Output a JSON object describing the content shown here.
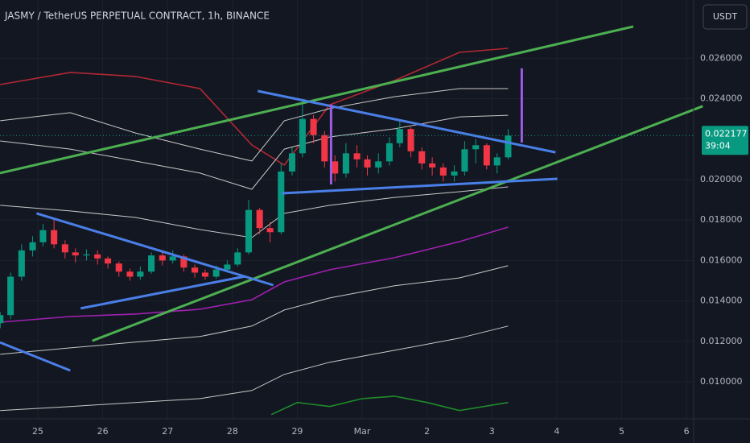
{
  "chart_data": {
    "type": "candlestick",
    "title": "JASMY / TetherUS PERPETUAL CONTRACT, 1h, BINANCE",
    "currency_button": "USDT",
    "last_price": 0.022177,
    "timer": "39:04",
    "up_color": "#089981",
    "down_color": "#f23645",
    "grid": true,
    "xlim": [
      -0.583,
      10.11
    ],
    "ylim": [
      0.00817,
      0.02888
    ],
    "xticks": [
      {
        "value": 0,
        "label": "25"
      },
      {
        "value": 1,
        "label": "26"
      },
      {
        "value": 2,
        "label": "27"
      },
      {
        "value": 3,
        "label": "28"
      },
      {
        "value": 4,
        "label": "29"
      },
      {
        "value": 5,
        "label": "Mar"
      },
      {
        "value": 6,
        "label": "2"
      },
      {
        "value": 7,
        "label": "3"
      },
      {
        "value": 8,
        "label": "4"
      },
      {
        "value": 9,
        "label": "5"
      },
      {
        "value": 10,
        "label": "6"
      }
    ],
    "yticks": [
      {
        "value": 0.01,
        "label": "0.010000"
      },
      {
        "value": 0.012,
        "label": "0.012000"
      },
      {
        "value": 0.014,
        "label": "0.014000"
      },
      {
        "value": 0.016,
        "label": "0.016000"
      },
      {
        "value": 0.018,
        "label": "0.018000"
      },
      {
        "value": 0.02,
        "label": "0.020000"
      },
      {
        "value": 0.024,
        "label": "0.024000"
      },
      {
        "value": 0.026,
        "label": "0.026000"
      }
    ],
    "x": [
      -0.58,
      -0.42,
      -0.25,
      -0.08,
      0.08,
      0.25,
      0.42,
      0.58,
      0.75,
      0.92,
      1.08,
      1.25,
      1.42,
      1.58,
      1.75,
      1.92,
      2.08,
      2.25,
      2.42,
      2.58,
      2.75,
      2.92,
      3.08,
      3.25,
      3.42,
      3.58,
      3.75,
      3.92,
      4.08,
      4.25,
      4.42,
      4.58,
      4.75,
      4.92,
      5.08,
      5.25,
      5.42,
      5.58,
      5.75,
      5.92,
      6.08,
      6.25,
      6.42,
      6.58,
      6.75,
      6.92,
      7.08,
      7.25
    ],
    "open": [
      0.0129,
      0.0133,
      0.0152,
      0.0165,
      0.0169,
      0.0175,
      0.0168,
      0.0164,
      0.01625,
      0.0163,
      0.0161,
      0.01585,
      0.01545,
      0.0152,
      0.01545,
      0.01625,
      0.016,
      0.0162,
      0.01565,
      0.0154,
      0.0152,
      0.01555,
      0.0158,
      0.0164,
      0.0185,
      0.0176,
      0.0174,
      0.0204,
      0.0213,
      0.023,
      0.0222,
      0.0209,
      0.0203,
      0.0213,
      0.021,
      0.0206,
      0.0209,
      0.0218,
      0.0225,
      0.0214,
      0.0208,
      0.0206,
      0.0202,
      0.0204,
      0.0215,
      0.0217,
      0.0207,
      0.0211
    ],
    "high": [
      0.01345,
      0.0154,
      0.0168,
      0.0172,
      0.0178,
      0.01805,
      0.017,
      0.0166,
      0.01655,
      0.0165,
      0.0162,
      0.01595,
      0.0156,
      0.0157,
      0.0164,
      0.0164,
      0.0165,
      0.0163,
      0.0158,
      0.01555,
      0.01575,
      0.016,
      0.0166,
      0.019,
      0.0186,
      0.0179,
      0.0208,
      0.0216,
      0.0239,
      0.0232,
      0.0224,
      0.0212,
      0.0218,
      0.0217,
      0.0212,
      0.0213,
      0.0221,
      0.0229,
      0.0226,
      0.0216,
      0.0211,
      0.0208,
      0.0207,
      0.0219,
      0.022,
      0.0218,
      0.0213,
      0.0225
    ],
    "low": [
      0.01265,
      0.0131,
      0.015,
      0.0162,
      0.0167,
      0.0166,
      0.0161,
      0.0159,
      0.016,
      0.0158,
      0.0156,
      0.0152,
      0.015,
      0.01505,
      0.01535,
      0.01575,
      0.01585,
      0.01545,
      0.01515,
      0.01505,
      0.0151,
      0.0154,
      0.0157,
      0.0163,
      0.0173,
      0.0169,
      0.0173,
      0.0202,
      0.0211,
      0.0218,
      0.0206,
      0.0199,
      0.0201,
      0.0206,
      0.0202,
      0.0203,
      0.0207,
      0.0216,
      0.0211,
      0.0205,
      0.0202,
      0.0199,
      0.0199,
      0.0202,
      0.0208,
      0.0205,
      0.0203,
      0.021
    ],
    "close": [
      0.0133,
      0.0152,
      0.0165,
      0.0169,
      0.0175,
      0.0168,
      0.0164,
      0.01625,
      0.0163,
      0.0161,
      0.01585,
      0.01545,
      0.0152,
      0.01545,
      0.01625,
      0.016,
      0.0162,
      0.01565,
      0.0154,
      0.0152,
      0.01555,
      0.0158,
      0.0164,
      0.0185,
      0.0176,
      0.0174,
      0.0204,
      0.0213,
      0.023,
      0.0222,
      0.0209,
      0.0203,
      0.0213,
      0.021,
      0.0206,
      0.0209,
      0.0218,
      0.0225,
      0.0214,
      0.0208,
      0.0206,
      0.0202,
      0.0204,
      0.0215,
      0.0217,
      0.0207,
      0.0211,
      0.022177
    ],
    "bands_x": [
      -0.58,
      0.5,
      1.5,
      2.5,
      3.3,
      3.8,
      4.5,
      5.5,
      6.5,
      7.25
    ],
    "bands": [
      {
        "color": "#b22833",
        "values": [
          0.0247,
          0.0253,
          0.0251,
          0.0245,
          0.02171,
          0.02072,
          0.0237,
          0.0249,
          0.02629,
          0.02649
        ]
      },
      {
        "color": "#a020b0",
        "values": [
          0.01295,
          0.01323,
          0.01335,
          0.01359,
          0.01406,
          0.01494,
          0.01554,
          0.01614,
          0.01693,
          0.01765
        ]
      },
      {
        "color": "#c8c8c8",
        "values": [
          0.02291,
          0.02331,
          0.02231,
          0.02151,
          0.02092,
          0.02291,
          0.02351,
          0.0241,
          0.0245,
          0.0245
        ]
      },
      {
        "color": "#c8c8c8",
        "values": [
          0.02191,
          0.02151,
          0.02092,
          0.02032,
          0.01952,
          0.02151,
          0.02211,
          0.02251,
          0.0231,
          0.02318
        ]
      },
      {
        "color": "#c8c8c8",
        "values": [
          0.01873,
          0.01845,
          0.01813,
          0.01753,
          0.01713,
          0.01833,
          0.01873,
          0.01912,
          0.0194,
          0.01964
        ]
      },
      {
        "color": "#c8c8c8",
        "values": [
          0.01136,
          0.01168,
          0.01196,
          0.01224,
          0.01276,
          0.01355,
          0.01415,
          0.01475,
          0.01514,
          0.01574
        ]
      },
      {
        "color": "#c8c8c8",
        "values": [
          0.00858,
          0.00878,
          0.00898,
          0.00917,
          0.00957,
          0.01037,
          0.01097,
          0.01156,
          0.01216,
          0.01276
        ]
      }
    ],
    "lower_band_x": [
      3.6,
      4.0,
      4.5,
      5.0,
      5.5,
      6.0,
      6.5,
      7.25
    ],
    "lower_band": {
      "color": "#1e8c2a",
      "values": [
        0.00838,
        0.00898,
        0.00878,
        0.00917,
        0.00929,
        0.00898,
        0.00858,
        0.00898
      ]
    },
    "drawings": [
      {
        "color": "#4caf50",
        "x": [
          -0.583,
          9.18
        ],
        "y": [
          0.02032,
          0.02757
        ]
      },
      {
        "color": "#4caf50",
        "x": [
          0.84,
          10.25
        ],
        "y": [
          0.01203,
          0.02363
        ]
      },
      {
        "color": "#4a7fe8",
        "x": [
          3.39,
          7.98
        ],
        "y": [
          0.02438,
          0.02135
        ]
      },
      {
        "color": "#4a7fe8",
        "x": [
          3.76,
          8.01
        ],
        "y": [
          0.01932,
          0.02004
        ]
      },
      {
        "color": "#4a7fe8",
        "x": [
          -0.02,
          3.63
        ],
        "y": [
          0.01833,
          0.01478
        ]
      },
      {
        "color": "#4a7fe8",
        "x": [
          0.66,
          3.2
        ],
        "y": [
          0.01363,
          0.01522
        ]
      },
      {
        "color": "#4a7fe8",
        "x": [
          -0.583,
          0.5
        ],
        "y": [
          0.01195,
          0.01056
        ]
      },
      {
        "color": "#9c5ce6",
        "x": [
          4.52,
          4.52
        ],
        "y": [
          0.02371,
          0.01976
        ]
      },
      {
        "color": "#9c5ce6",
        "x": [
          7.46,
          7.46
        ],
        "y": [
          0.0255,
          0.02183
        ]
      }
    ]
  }
}
